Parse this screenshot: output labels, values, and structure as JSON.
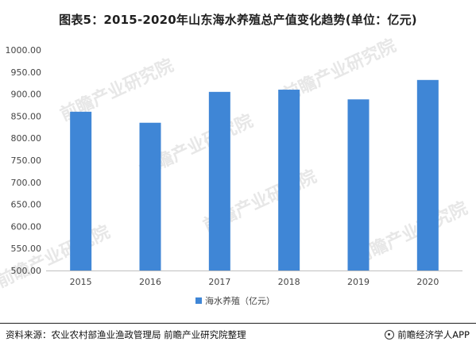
{
  "title": "图表5：2015-2020年山东海水养殖总产值变化趋势(单位：亿元)",
  "watermark": "前瞻产业研究院",
  "source": "资料来源：农业农村部渔业渔政管理局 前瞻产业研究院整理",
  "brand": "前瞻经济学人APP",
  "brand_icon": "qianzhan-logo-icon",
  "colors": {
    "bar": "#3f86d6",
    "axis": "#bfbfbf",
    "text": "#444444",
    "watermark": "#e7e7e7"
  },
  "chart_data": {
    "type": "bar",
    "title": "图表5：2015-2020年山东海水养殖总产值变化趋势(单位：亿元)",
    "categories": [
      "2015",
      "2016",
      "2017",
      "2018",
      "2019",
      "2020"
    ],
    "series": [
      {
        "name": "海水养殖（亿元）",
        "values": [
          860,
          835,
          905,
          910,
          888,
          932
        ]
      }
    ],
    "y_ticks": [
      "500.00",
      "550.00",
      "600.00",
      "650.00",
      "700.00",
      "750.00",
      "800.00",
      "850.00",
      "900.00",
      "950.00",
      "1000.00"
    ],
    "ylim": [
      500,
      1000
    ],
    "xlabel": "",
    "ylabel": "",
    "grid": false,
    "legend": "bottom-center"
  }
}
